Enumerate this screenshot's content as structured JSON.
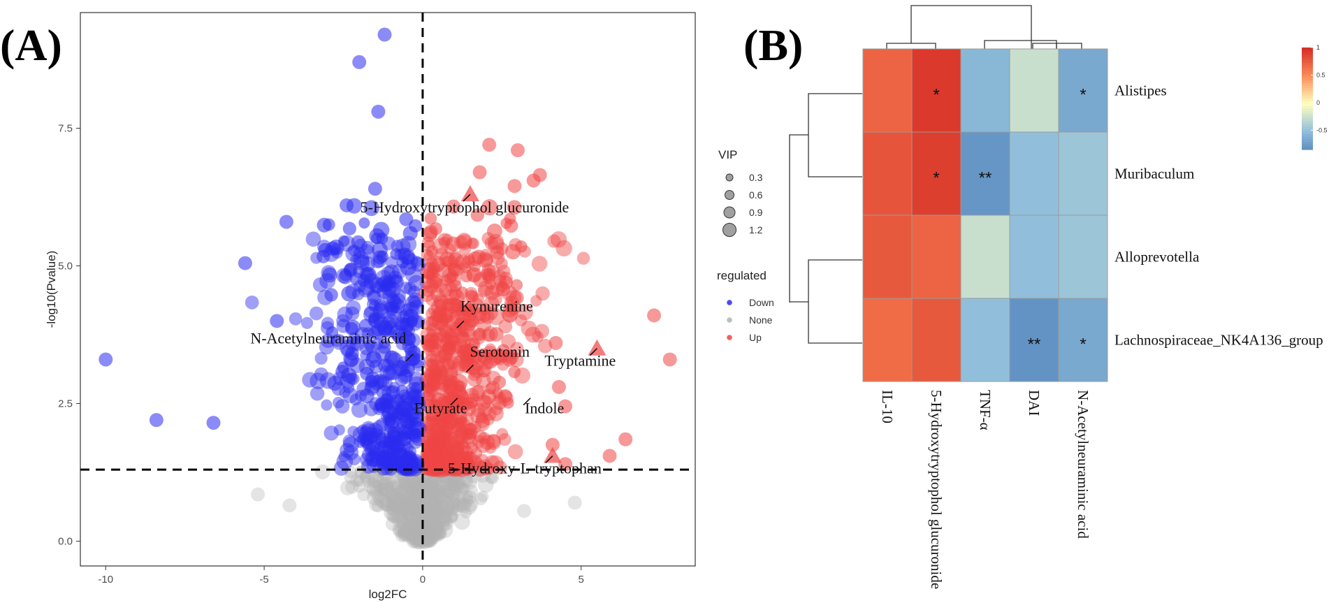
{
  "panel_labels": [
    "(A)",
    "(B)"
  ],
  "chart_data": [
    {
      "type": "scatter",
      "title": "",
      "xlabel": "log2FC",
      "ylabel": "-log10(Pvalue)",
      "xlim": [
        -10.8,
        8.6
      ],
      "ylim": [
        -0.45,
        9.6
      ],
      "xticks": [
        -10,
        -5,
        0,
        5
      ],
      "xtick_labels": [
        "-10",
        "-5",
        "0",
        "5"
      ],
      "yticks": [
        0.0,
        2.5,
        5.0,
        7.5
      ],
      "ytick_labels": [
        "0.0",
        "2.5",
        "5.0",
        "7.5"
      ],
      "thresholds": {
        "x": 0,
        "y": 1.3
      },
      "colors": {
        "Down": "#2b2bf0",
        "None": "#b3b3b3",
        "Up": "#f04545"
      },
      "legend": {
        "vip_title": "VIP",
        "vip_levels": [
          "0.3",
          "0.6",
          "0.9",
          "1.2"
        ],
        "regulated_title": "regulated",
        "regulated_levels": [
          "Down",
          "None",
          "Up"
        ]
      },
      "outlier_points": [
        {
          "x": -1.2,
          "y": 9.2,
          "group": "Down"
        },
        {
          "x": -2.0,
          "y": 8.7,
          "group": "Down"
        },
        {
          "x": -1.4,
          "y": 7.8,
          "group": "Down"
        },
        {
          "x": -10.0,
          "y": 3.3,
          "group": "Down"
        },
        {
          "x": -8.4,
          "y": 2.2,
          "group": "Down"
        },
        {
          "x": -6.6,
          "y": 2.15,
          "group": "Down"
        },
        {
          "x": -5.6,
          "y": 5.05,
          "group": "Down"
        },
        {
          "x": -4.3,
          "y": 5.8,
          "group": "Down"
        },
        {
          "x": -4.6,
          "y": 4.0,
          "group": "Down"
        },
        {
          "x": -2.4,
          "y": 6.1,
          "group": "Down"
        },
        {
          "x": -1.5,
          "y": 6.4,
          "group": "Down"
        },
        {
          "x": 2.1,
          "y": 7.2,
          "group": "Up"
        },
        {
          "x": 3.0,
          "y": 7.1,
          "group": "Up"
        },
        {
          "x": 1.8,
          "y": 6.7,
          "group": "Up"
        },
        {
          "x": 3.7,
          "y": 6.65,
          "group": "Up"
        },
        {
          "x": 3.5,
          "y": 6.55,
          "group": "Up"
        },
        {
          "x": 2.9,
          "y": 6.45,
          "group": "Up"
        },
        {
          "x": 7.3,
          "y": 4.1,
          "group": "Up"
        },
        {
          "x": 7.8,
          "y": 3.3,
          "group": "Up"
        },
        {
          "x": 6.4,
          "y": 1.85,
          "group": "Up"
        },
        {
          "x": 5.9,
          "y": 1.55,
          "group": "Up"
        },
        {
          "x": 4.3,
          "y": 2.8,
          "group": "Up"
        },
        {
          "x": 4.2,
          "y": 3.6,
          "group": "Up"
        },
        {
          "x": 4.5,
          "y": 2.45,
          "group": "Up"
        },
        {
          "x": 4.1,
          "y": 1.75,
          "group": "Up"
        },
        {
          "x": 4.5,
          "y": 1.4,
          "group": "Up"
        },
        {
          "x": -5.2,
          "y": 0.85,
          "group": "None"
        },
        {
          "x": 4.8,
          "y": 0.7,
          "group": "None"
        },
        {
          "x": -4.2,
          "y": 0.65,
          "group": "None"
        },
        {
          "x": 3.2,
          "y": 0.55,
          "group": "None"
        }
      ],
      "highlighted": [
        {
          "label": "5-Hydroxytryptophol glucuronide",
          "x": 1.5,
          "y": 6.3,
          "marker": "triangle"
        },
        {
          "label": "Kynurenine",
          "x": 1.3,
          "y": 4.0,
          "marker": "circle"
        },
        {
          "label": "N-Acetylneuraminic acid",
          "x": -0.3,
          "y": 3.4,
          "marker": "circle"
        },
        {
          "label": "Serotonin",
          "x": 1.6,
          "y": 3.2,
          "marker": "circle"
        },
        {
          "label": "Tryptamine",
          "x": 5.5,
          "y": 3.5,
          "marker": "triangle"
        },
        {
          "label": "Indole",
          "x": 3.4,
          "y": 2.6,
          "marker": "circle"
        },
        {
          "label": "Butyrate",
          "x": 1.1,
          "y": 2.6,
          "marker": "circle"
        },
        {
          "label": "5-Hydroxy-L-tryptophan",
          "x": 4.1,
          "y": 1.55,
          "marker": "triangle"
        }
      ]
    },
    {
      "type": "heatmap",
      "title": "",
      "rows": [
        "Alistipes",
        "Muribaculum",
        "Alloprevotella",
        "Lachnospiraceae_NK4A136_group"
      ],
      "columns": [
        "IL-10",
        "5-Hydroxytryptophol glucuronide",
        "TNF-α",
        "DAI",
        "N-Acetylneuraminic acid"
      ],
      "values": [
        [
          0.72,
          0.95,
          -0.55,
          -0.25,
          -0.65
        ],
        [
          0.8,
          0.92,
          -0.78,
          -0.5,
          -0.45
        ],
        [
          0.78,
          0.72,
          -0.25,
          -0.5,
          -0.45
        ],
        [
          0.68,
          0.78,
          -0.5,
          -0.8,
          -0.65
        ]
      ],
      "significance": [
        [
          "",
          "*",
          "",
          "",
          "*"
        ],
        [
          "",
          "*",
          "**",
          "",
          ""
        ],
        [
          "",
          "",
          "",
          "",
          ""
        ],
        [
          "",
          "",
          "",
          "**",
          "*"
        ]
      ],
      "colorbar": {
        "min": -0.85,
        "max": 1,
        "ticks": [
          1,
          0.5,
          0,
          -0.5
        ],
        "tick_labels": [
          "1",
          "0.5",
          "0",
          "-0.5"
        ]
      },
      "colors": {
        "low": "#4575b4",
        "mid_low": "#91bfdb",
        "mid": "#ffffbf",
        "mid_high": "#fc8d59",
        "high": "#d73027"
      }
    }
  ]
}
